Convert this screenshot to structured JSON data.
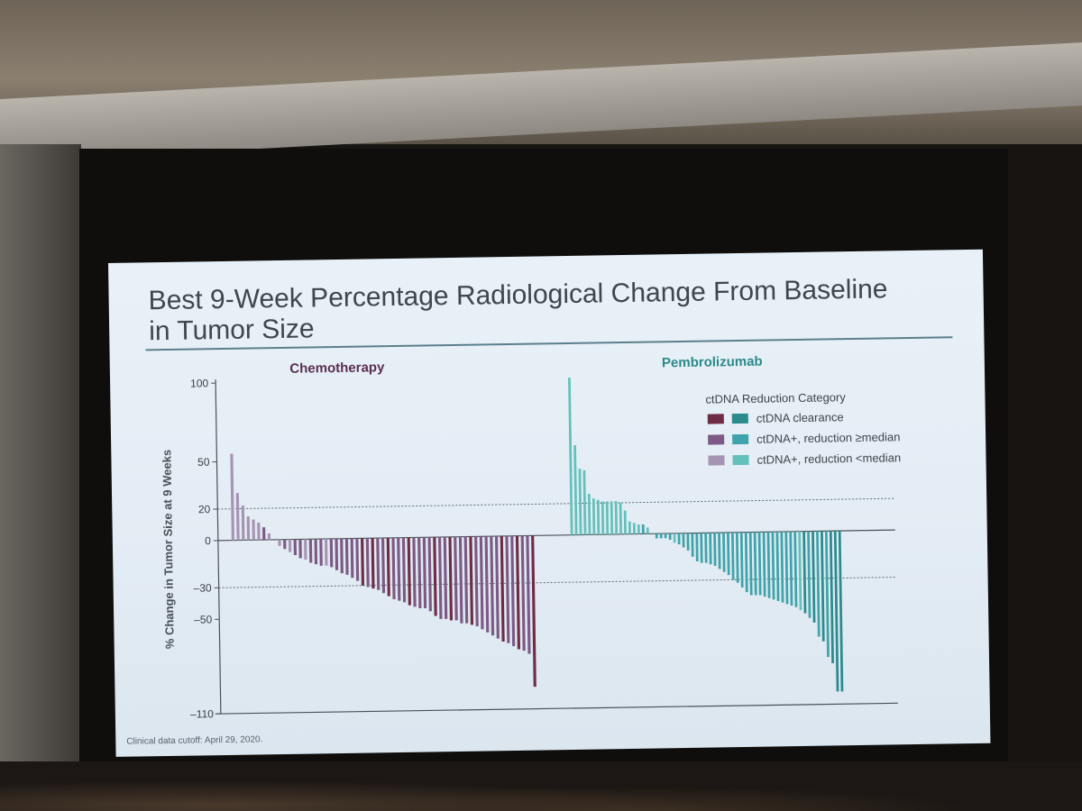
{
  "slide": {
    "title_line1": "Best 9-Week Percentage Radiological Change From Baseline",
    "title_line2": "in Tumor Size",
    "footnote": "Clinical data cutoff: April 29, 2020."
  },
  "chart_data": {
    "type": "bar",
    "ylabel": "% Change in Tumor Size at 9 Weeks",
    "ylim": [
      -110,
      100
    ],
    "yticks": [
      100,
      50,
      20,
      0,
      -30,
      -50,
      -110
    ],
    "reference_lines": [
      20,
      -30
    ],
    "legend": {
      "title": "ctDNA Reduction Category",
      "entries": [
        {
          "label": "ctDNA clearance",
          "colors": [
            "#6e2d45",
            "#2a8a8c"
          ]
        },
        {
          "label": "ctDNA+, reduction ≥median",
          "colors": [
            "#7d5a86",
            "#3ea3aa"
          ]
        },
        {
          "label": "ctDNA+, reduction <median",
          "colors": [
            "#a694b3",
            "#63c0ba"
          ]
        }
      ]
    },
    "panels": [
      {
        "name": "Chemotherapy",
        "title_color": "#5a2e52",
        "colors": {
          "clearance": "#6e2d45",
          "ge_median": "#7d5a86",
          "lt_median": "#a694b3"
        },
        "values": [
          55,
          30,
          22,
          15,
          13,
          11,
          8,
          4,
          0,
          -4,
          -6,
          -8,
          -10,
          -12,
          -13,
          -15,
          -16,
          -17,
          -17,
          -18,
          -20,
          -22,
          -23,
          -25,
          -27,
          -30,
          -31,
          -32,
          -33,
          -35,
          -37,
          -39,
          -40,
          -41,
          -43,
          -44,
          -45,
          -45,
          -47,
          -50,
          -52,
          -52,
          -53,
          -53,
          -55,
          -55,
          -56,
          -57,
          -59,
          -61,
          -63,
          -65,
          -67,
          -68,
          -70,
          -72,
          -73,
          -75,
          -96
        ],
        "categories": [
          "lt",
          "lt",
          "lt",
          "lt",
          "lt",
          "lt",
          "ge",
          "lt",
          "ge",
          "lt",
          "ge",
          "lt",
          "ge",
          "ge",
          "lt",
          "ge",
          "ge",
          "ge",
          "lt",
          "ge",
          "ge",
          "ge",
          "ge",
          "ge",
          "ge",
          "clr",
          "ge",
          "clr",
          "ge",
          "ge",
          "clr",
          "ge",
          "ge",
          "ge",
          "clr",
          "ge",
          "ge",
          "ge",
          "ge",
          "clr",
          "ge",
          "ge",
          "clr",
          "ge",
          "ge",
          "ge",
          "clr",
          "ge",
          "ge",
          "ge",
          "ge",
          "ge",
          "clr",
          "ge",
          "ge",
          "clr",
          "ge",
          "ge",
          "clr"
        ]
      },
      {
        "name": "Pembrolizumab",
        "title_color": "#2b8a8a",
        "colors": {
          "clearance": "#2a8a8c",
          "ge_median": "#3ea3aa",
          "lt_median": "#63c0ba"
        },
        "values": [
          100,
          57,
          42,
          41,
          26,
          23,
          22,
          21,
          21,
          21,
          21,
          20,
          15,
          8,
          7,
          6,
          6,
          4,
          0,
          -3,
          -3,
          -3,
          -4,
          -6,
          -7,
          -9,
          -11,
          -15,
          -18,
          -19,
          -19,
          -20,
          -21,
          -23,
          -25,
          -27,
          -30,
          -32,
          -35,
          -38,
          -40,
          -40,
          -40,
          -41,
          -42,
          -43,
          -44,
          -45,
          -46,
          -47,
          -48,
          -50,
          -52,
          -55,
          -58,
          -67,
          -70,
          -80,
          -84,
          -102,
          -102
        ],
        "categories": [
          "lt",
          "lt",
          "lt",
          "lt",
          "lt",
          "lt",
          "lt",
          "lt",
          "lt",
          "lt",
          "lt",
          "lt",
          "lt",
          "lt",
          "lt",
          "lt",
          "ge",
          "lt",
          "ge",
          "ge",
          "ge",
          "ge",
          "ge",
          "lt",
          "ge",
          "ge",
          "ge",
          "ge",
          "ge",
          "ge",
          "ge",
          "ge",
          "ge",
          "ge",
          "ge",
          "ge",
          "ge",
          "ge",
          "ge",
          "ge",
          "ge",
          "ge",
          "ge",
          "ge",
          "ge",
          "ge",
          "ge",
          "ge",
          "ge",
          "ge",
          "ge",
          "lt",
          "clr",
          "ge",
          "clr",
          "ge",
          "clr",
          "ge",
          "clr",
          "clr",
          "clr"
        ]
      }
    ]
  }
}
